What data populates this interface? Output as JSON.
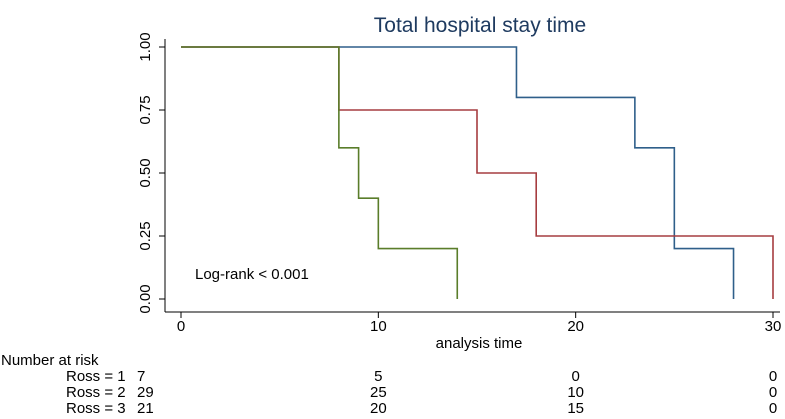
{
  "chart_data": {
    "type": "line",
    "title": "Total hospital stay time",
    "xlabel": "analysis time",
    "ylabel": "",
    "xlim": [
      0,
      30
    ],
    "ylim": [
      0,
      1
    ],
    "x_ticks": [
      0,
      10,
      20,
      30
    ],
    "x_tick_labels": [
      "0",
      "10",
      "20",
      "30"
    ],
    "y_ticks": [
      0,
      0.25,
      0.5,
      0.75,
      1
    ],
    "y_tick_labels": [
      "0.00",
      "0.25",
      "0.50",
      "0.75",
      "1.00"
    ],
    "grid": false,
    "step": true,
    "series": [
      {
        "color": "#2f5f8a",
        "x": [
          0,
          17,
          23,
          25,
          28
        ],
        "y": [
          1.0,
          0.8,
          0.6,
          0.2,
          0.0
        ]
      },
      {
        "color": "#a63d40",
        "x": [
          0,
          8,
          15,
          18,
          30
        ],
        "y": [
          1.0,
          0.75,
          0.5,
          0.25,
          0.0
        ]
      },
      {
        "color": "#5a7d2a",
        "x": [
          0,
          8,
          9,
          10,
          14
        ],
        "y": [
          1.0,
          0.6,
          0.4,
          0.2,
          0.0
        ]
      }
    ],
    "annotation": "Log-rank < 0.001",
    "risk_table": {
      "heading": "Number at risk",
      "rows": [
        {
          "label": "Ross = 1",
          "values": [
            "7",
            "5",
            "0",
            "0"
          ]
        },
        {
          "label": "Ross = 2",
          "values": [
            "29",
            "25",
            "10",
            "0"
          ]
        },
        {
          "label": "Ross = 3",
          "values": [
            "21",
            "20",
            "15",
            "0"
          ]
        }
      ]
    }
  }
}
